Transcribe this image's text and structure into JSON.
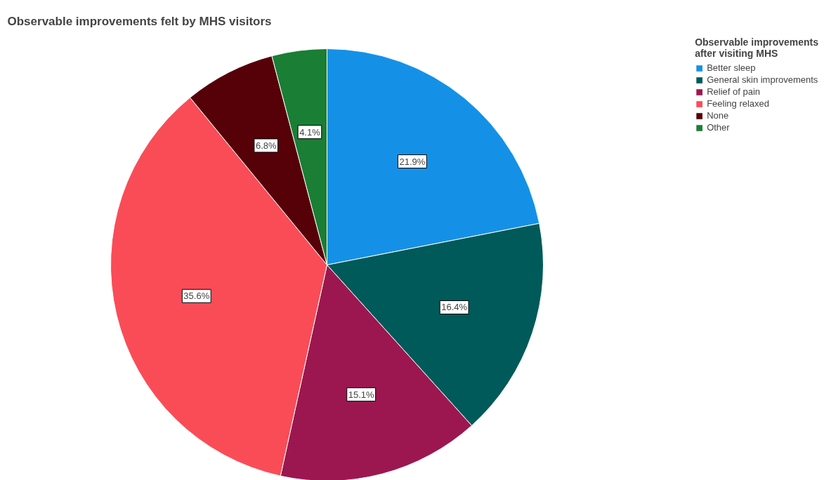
{
  "chart_data": {
    "type": "pie",
    "title": "Observable improvements felt by MHS visitors",
    "legend_title": "Observable improvements after visiting MHS",
    "categories": [
      "Better sleep",
      "General skin improvements",
      "Relief of pain",
      "Feeling relaxed",
      "None",
      "Other"
    ],
    "values": [
      21.9,
      16.4,
      15.1,
      35.6,
      6.8,
      4.1
    ],
    "colors": [
      "#1491e6",
      "#005a5a",
      "#9c1750",
      "#fa4c57",
      "#560008",
      "#1a7e35"
    ],
    "value_labels": [
      "21.9%",
      "16.4%",
      "15.1%",
      "35.6%",
      "6.8%",
      "4.1%"
    ],
    "legend": "top right"
  }
}
